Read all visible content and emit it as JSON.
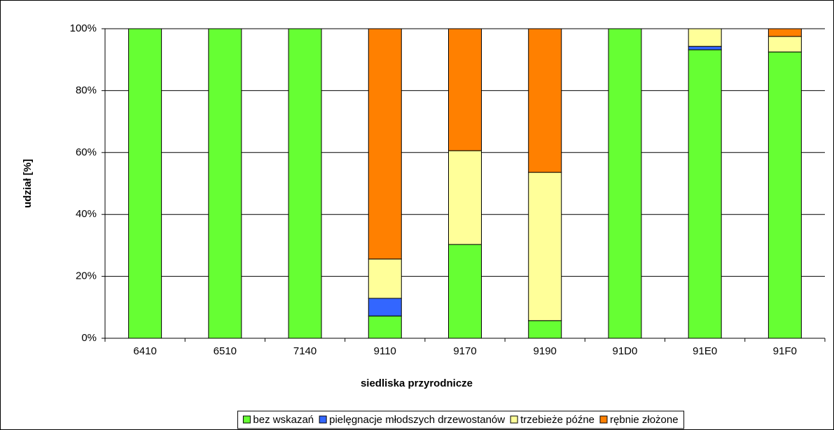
{
  "chart_data": {
    "type": "stacked_bar",
    "xlabel": "siedliska przyrodnicze",
    "ylabel": "udział [%]",
    "categories": [
      "6410",
      "6510",
      "7140",
      "9110",
      "9170",
      "9190",
      "91D0",
      "91E0",
      "91F0"
    ],
    "series": [
      {
        "name": "bez wskazań",
        "color": "#66ff33",
        "values": [
          100,
          100,
          100,
          7.2,
          30.3,
          5.7,
          100,
          93.2,
          92.5
        ]
      },
      {
        "name": "pielęgnacje młodszych drzewostanów",
        "color": "#3366ff",
        "values": [
          0,
          0,
          0,
          5.7,
          0,
          0,
          0,
          1.1,
          0
        ]
      },
      {
        "name": "trzebieże późne",
        "color": "#ffff99",
        "values": [
          0,
          0,
          0,
          12.7,
          30.3,
          47.9,
          0,
          5.7,
          5
        ]
      },
      {
        "name": "rębnie złożone",
        "color": "#ff8000",
        "values": [
          0,
          0,
          0,
          74.4,
          39.4,
          46.4,
          0,
          0,
          2.5
        ]
      }
    ],
    "ylim": [
      0,
      100
    ],
    "yticks": [
      {
        "value": 0,
        "label": "0%"
      },
      {
        "value": 20,
        "label": "20%"
      },
      {
        "value": 40,
        "label": "40%"
      },
      {
        "value": 60,
        "label": "60%"
      },
      {
        "value": 80,
        "label": "80%"
      },
      {
        "value": 100,
        "label": "100%"
      }
    ],
    "grid": true,
    "legend": "bottom"
  }
}
